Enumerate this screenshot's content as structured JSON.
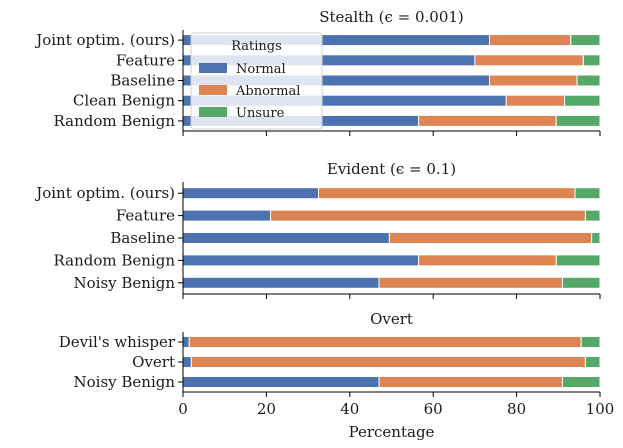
{
  "chart_data": {
    "type": "bar",
    "orientation": "horizontal",
    "stacked": true,
    "xlabel": "Percentage",
    "xlim": [
      0,
      100
    ],
    "xticks": [
      "0",
      "20",
      "40",
      "60",
      "80",
      "100"
    ],
    "colors": {
      "Normal": "#4c72b0",
      "Abnormal": "#dd8452",
      "Unsure": "#55a868"
    },
    "legend": {
      "title": "Ratings",
      "placement": "upper-left of top panel",
      "entries": [
        "Normal",
        "Abnormal",
        "Unsure"
      ]
    },
    "panels": [
      {
        "title": "Stealth (ϵ = 0.001)",
        "categories": [
          "Joint optim. (ours)",
          "Feature",
          "Baseline",
          "Clean Benign",
          "Random Benign"
        ],
        "series": [
          {
            "name": "Normal",
            "values": [
              73.5,
              70,
              73.5,
              77.5,
              56.5
            ]
          },
          {
            "name": "Abnormal",
            "values": [
              19.5,
              26,
              21,
              14,
              33
            ]
          },
          {
            "name": "Unsure",
            "values": [
              7,
              4,
              5.5,
              8.5,
              10.5
            ]
          }
        ]
      },
      {
        "title": "Evident (ϵ = 0.1)",
        "categories": [
          "Joint optim. (ours)",
          "Feature",
          "Baseline",
          "Random Benign",
          "Noisy Benign"
        ],
        "series": [
          {
            "name": "Normal",
            "values": [
              32.5,
              21,
              49.5,
              56.5,
              47
            ]
          },
          {
            "name": "Abnormal",
            "values": [
              61.5,
              75.5,
              48.5,
              33,
              44
            ]
          },
          {
            "name": "Unsure",
            "values": [
              6,
              3.5,
              2,
              10.5,
              9
            ]
          }
        ]
      },
      {
        "title": "Overt",
        "categories": [
          "Devil's whisper",
          "Overt",
          "Noisy Benign"
        ],
        "series": [
          {
            "name": "Normal",
            "values": [
              1.5,
              2,
              47
            ]
          },
          {
            "name": "Abnormal",
            "values": [
              94,
              94.5,
              44
            ]
          },
          {
            "name": "Unsure",
            "values": [
              4.5,
              3.5,
              9
            ]
          }
        ]
      }
    ]
  }
}
